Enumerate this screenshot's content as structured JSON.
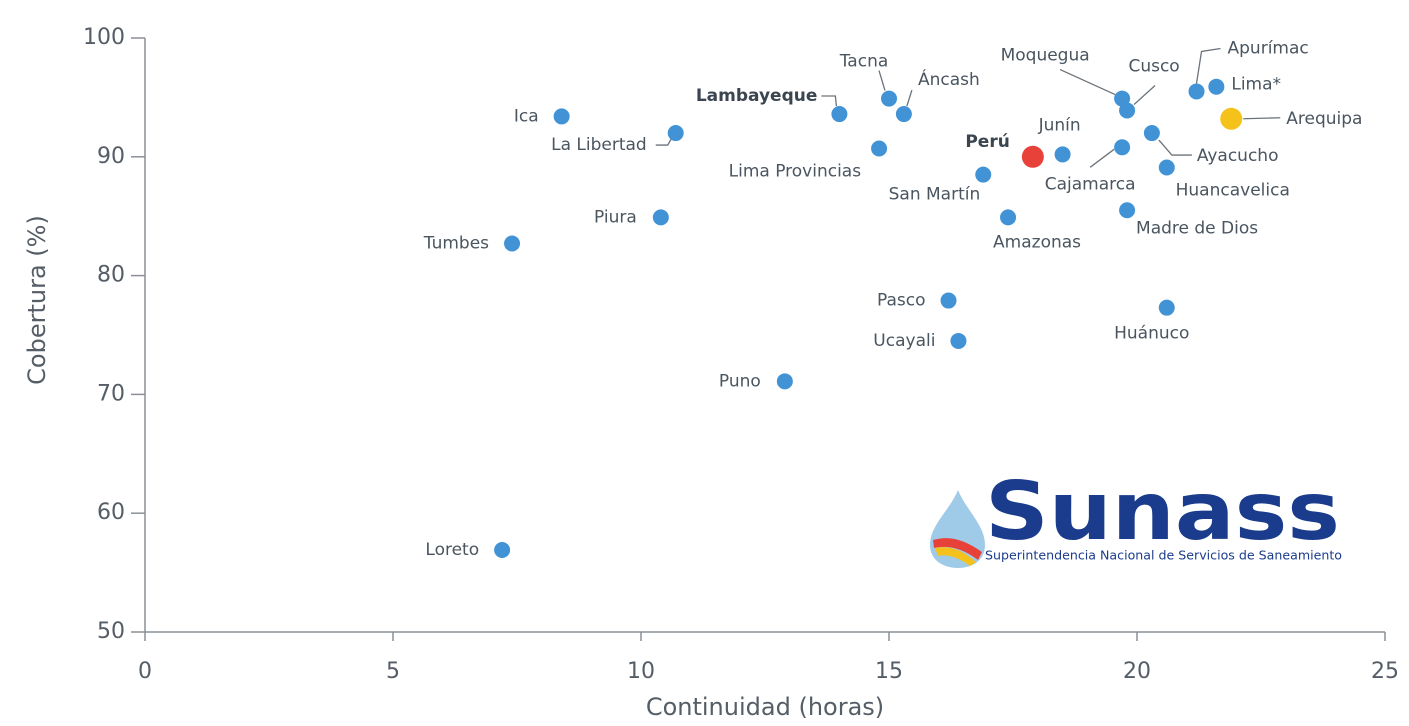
{
  "chart_data": {
    "type": "scatter",
    "xlabel": "Continuidad (horas)",
    "ylabel": "Cobertura (%)",
    "xlim": [
      0,
      25
    ],
    "xticks": [
      0,
      5,
      10,
      15,
      20,
      25
    ],
    "ylim": [
      50,
      100
    ],
    "yticks": [
      50,
      60,
      70,
      80,
      90,
      100
    ],
    "labels": [
      "Ica",
      "La Libertad",
      "Lambayeque",
      "Tacna",
      "Áncash",
      "Lima Provincias",
      "Tumbes",
      "Piura",
      "Loreto",
      "Puno",
      "Pasco",
      "Ucayali",
      "San Martín",
      "Amazonas",
      "Perú",
      "Junín",
      "Moquegua",
      "Cusco",
      "Cajamarca",
      "Ayacucho",
      "Huancavelica",
      "Madre de Dios",
      "Huánuco",
      "Apurímac",
      "Lima*",
      "Arequipa"
    ],
    "x": [
      8.4,
      10.7,
      14.0,
      15.0,
      15.3,
      14.8,
      7.4,
      10.4,
      7.2,
      12.9,
      16.2,
      16.4,
      16.9,
      17.4,
      17.9,
      18.5,
      19.7,
      19.8,
      19.7,
      20.3,
      20.6,
      19.8,
      20.6,
      21.2,
      21.6,
      21.9
    ],
    "values": [
      93.4,
      92.0,
      93.6,
      94.9,
      93.6,
      90.7,
      82.7,
      84.9,
      56.9,
      71.1,
      77.9,
      74.5,
      88.5,
      84.9,
      90.0,
      90.2,
      94.9,
      93.9,
      90.8,
      92.0,
      89.1,
      85.5,
      77.3,
      95.5,
      95.9,
      93.2
    ],
    "colors": [
      "#4293d6",
      "#4293d6",
      "#4293d6",
      "#4293d6",
      "#4293d6",
      "#4293d6",
      "#4293d6",
      "#4293d6",
      "#4293d6",
      "#4293d6",
      "#4293d6",
      "#4293d6",
      "#4293d6",
      "#4293d6",
      "#e8413a",
      "#4293d6",
      "#4293d6",
      "#4293d6",
      "#4293d6",
      "#4293d6",
      "#4293d6",
      "#4293d6",
      "#4293d6",
      "#4293d6",
      "#4293d6",
      "#f5c21b"
    ],
    "label_bold": [
      false,
      false,
      true,
      false,
      false,
      false,
      false,
      false,
      false,
      false,
      false,
      false,
      false,
      false,
      true,
      false,
      false,
      false,
      false,
      false,
      false,
      false,
      false,
      false,
      false,
      false
    ],
    "logo": {
      "name": "Sunass",
      "tagline": "Superintendencia Nacional de Servicios de Saneamiento"
    }
  }
}
